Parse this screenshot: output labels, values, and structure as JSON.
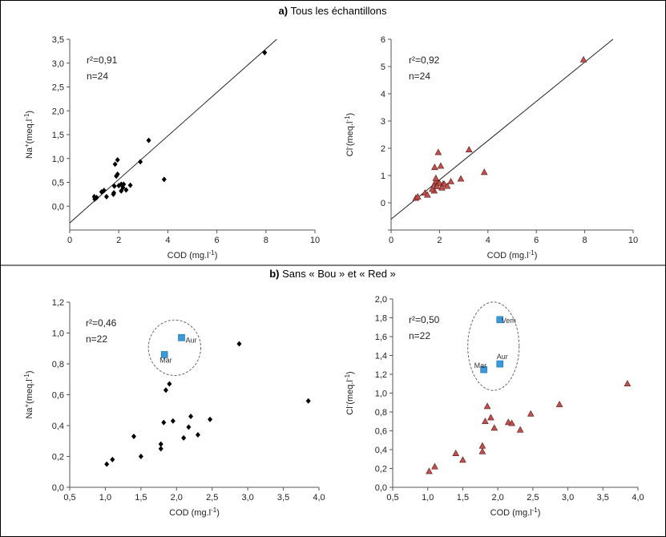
{
  "figure": {
    "section_a": {
      "letter": "a)",
      "title": "Tous les échantillons"
    },
    "section_b": {
      "letter": "b)",
      "title": "Sans « Bou » et « Red »"
    }
  },
  "chart_data": [
    {
      "type": "scatter",
      "xlabel": "COD (mg.l",
      "xlabel_sup": "-1",
      "xlabel_end": ")",
      "ylabel": "Na",
      "ylabel_sup1": "+",
      "ylabel_mid": "(meq.l",
      "ylabel_sup2": "-1",
      "ylabel_end": ")",
      "stats": {
        "r2_label": "r²=0,91",
        "n_label": "n=24"
      },
      "xlim": [
        0,
        10
      ],
      "ylim": [
        -0.5,
        3.5
      ],
      "xticks": [
        0,
        2,
        4,
        6,
        8,
        10
      ],
      "xtick_labels": [
        "0",
        "2",
        "4",
        "6",
        "8",
        "10"
      ],
      "yticks": [
        0.0,
        0.5,
        1.0,
        1.5,
        2.0,
        2.5,
        3.0,
        3.5
      ],
      "ytick_labels": [
        "0,0",
        "0,5",
        "1,0",
        "1,5",
        "2,0",
        "2,5",
        "3,0",
        "3,5"
      ],
      "marker": "diamond",
      "color": "#000000",
      "trendline": {
        "slope": 0.456,
        "intercept": -0.35
      },
      "series": [
        {
          "x": [
            1.02,
            1.1,
            1.4,
            1.5,
            1.78,
            1.8,
            1.82,
            1.85,
            1.9,
            1.95,
            2.0,
            2.1,
            2.17,
            2.2,
            2.3,
            2.47,
            2.1,
            1.0,
            1.3,
            1.95,
            2.88,
            3.22,
            3.85,
            7.95
          ],
          "y": [
            0.15,
            0.18,
            0.33,
            0.2,
            0.25,
            0.28,
            0.42,
            0.88,
            0.63,
            0.97,
            0.43,
            0.32,
            0.39,
            0.46,
            0.34,
            0.44,
            0.46,
            0.2,
            0.3,
            0.67,
            0.93,
            1.38,
            0.56,
            3.22
          ]
        }
      ]
    },
    {
      "type": "scatter",
      "xlabel": "COD (mg.l",
      "xlabel_sup": "-1",
      "xlabel_end": ")",
      "ylabel": "Cl",
      "ylabel_sup1": "-",
      "ylabel_mid": "(meq.l",
      "ylabel_sup2": "-1",
      "ylabel_end": ")",
      "stats": {
        "r2_label": "r²=0,92",
        "n_label": "n=24"
      },
      "xlim": [
        0,
        10
      ],
      "ylim": [
        -1,
        6
      ],
      "xticks": [
        0,
        2,
        4,
        6,
        8,
        10
      ],
      "xtick_labels": [
        "0",
        "2",
        "4",
        "6",
        "8",
        "10"
      ],
      "yticks": [
        -1,
        0,
        1,
        2,
        3,
        4,
        5,
        6
      ],
      "ytick_labels": [
        "",
        "0",
        "1",
        "2",
        "3",
        "4",
        "5",
        "6"
      ],
      "marker": "triangle",
      "color": "#c0504d",
      "trendline": {
        "slope": 0.72,
        "intercept": -0.6
      },
      "series": [
        {
          "x": [
            1.02,
            1.1,
            1.4,
            1.5,
            1.78,
            1.8,
            1.85,
            1.88,
            1.95,
            2.0,
            2.15,
            2.2,
            2.32,
            2.47,
            2.88,
            3.85,
            7.95,
            1.8,
            1.85,
            2.05,
            2.1,
            3.22,
            1.7,
            1.9
          ],
          "y": [
            0.17,
            0.22,
            0.36,
            0.29,
            0.44,
            0.7,
            0.78,
            0.62,
            1.85,
            0.72,
            0.69,
            0.68,
            0.61,
            0.78,
            0.88,
            1.12,
            5.25,
            1.3,
            0.9,
            1.35,
            0.55,
            1.95,
            0.5,
            0.6
          ]
        }
      ]
    },
    {
      "type": "scatter",
      "xlabel": "COD (mg.l",
      "xlabel_sup": "-1",
      "xlabel_end": ")",
      "ylabel": "Na",
      "ylabel_sup1": "+",
      "ylabel_mid": "(meq.l",
      "ylabel_sup2": "-1",
      "ylabel_end": ")",
      "stats": {
        "r2_label": "r²=0,46",
        "n_label": "n=22"
      },
      "xlim": [
        0.5,
        4.0
      ],
      "ylim": [
        0.0,
        1.2
      ],
      "xticks": [
        0.5,
        1.0,
        1.5,
        2.0,
        2.5,
        3.0,
        3.5,
        4.0
      ],
      "xtick_labels": [
        "0,5",
        "1,0",
        "1,5",
        "2,0",
        "2,5",
        "3,0",
        "3,5",
        "4,0"
      ],
      "yticks": [
        0.0,
        0.2,
        0.4,
        0.6,
        0.8,
        1.0,
        1.2
      ],
      "ytick_labels": [
        "0,0",
        "0,2",
        "0,4",
        "0,6",
        "0,8",
        "1,0",
        "1,2"
      ],
      "marker": "diamond",
      "color": "#000000",
      "series": [
        {
          "x": [
            1.02,
            1.1,
            1.4,
            1.5,
            1.78,
            1.78,
            1.82,
            1.85,
            1.9,
            1.95,
            2.1,
            2.17,
            2.2,
            2.3,
            2.47,
            2.88,
            3.85
          ],
          "y": [
            0.15,
            0.18,
            0.33,
            0.2,
            0.25,
            0.28,
            0.42,
            0.63,
            0.67,
            0.43,
            0.32,
            0.39,
            0.46,
            0.34,
            0.44,
            0.93,
            0.56
          ]
        }
      ],
      "highlighted": {
        "color": "#3a9ad9",
        "points": [
          {
            "label": "Aur",
            "x": 2.07,
            "y": 0.97
          },
          {
            "label": "Mar",
            "x": 1.83,
            "y": 0.86
          }
        ]
      }
    },
    {
      "type": "scatter",
      "xlabel": "COD (mg.l",
      "xlabel_sup": "-1",
      "xlabel_end": ")",
      "ylabel": "Cl",
      "ylabel_sup1": "-",
      "ylabel_mid": "(meq.l",
      "ylabel_sup2": "-1",
      "ylabel_end": ")",
      "stats": {
        "r2_label": "r²=0,50",
        "n_label": "n=22"
      },
      "xlim": [
        0.5,
        4.0
      ],
      "ylim": [
        0.0,
        2.0
      ],
      "xticks": [
        0.5,
        1.0,
        1.5,
        2.0,
        2.5,
        3.0,
        3.5,
        4.0
      ],
      "xtick_labels": [
        "0,5",
        "1,0",
        "1,5",
        "2,0",
        "2,5",
        "3,0",
        "3,5",
        "4,0"
      ],
      "yticks": [
        0.0,
        0.2,
        0.4,
        0.6,
        0.8,
        1.0,
        1.2,
        1.4,
        1.6,
        1.8,
        2.0
      ],
      "ytick_labels": [
        "0,0",
        "0,2",
        "0,4",
        "0,6",
        "0,8",
        "1,0",
        "1,2",
        "1,4",
        "1,6",
        "1,8",
        "2,0"
      ],
      "marker": "triangle",
      "color": "#c0504d",
      "series": [
        {
          "x": [
            1.02,
            1.1,
            1.4,
            1.5,
            1.78,
            1.78,
            1.82,
            1.85,
            1.9,
            1.95,
            2.15,
            2.2,
            2.32,
            2.47,
            2.88,
            3.85
          ],
          "y": [
            0.17,
            0.22,
            0.36,
            0.29,
            0.38,
            0.44,
            0.7,
            0.86,
            0.74,
            0.63,
            0.69,
            0.68,
            0.61,
            0.78,
            0.88,
            1.1
          ]
        }
      ],
      "highlighted": {
        "color": "#3a9ad9",
        "points": [
          {
            "label": "Vem",
            "x": 2.03,
            "y": 1.78
          },
          {
            "label": "Aur",
            "x": 2.03,
            "y": 1.31
          },
          {
            "label": "Mar",
            "x": 1.8,
            "y": 1.25
          }
        ]
      }
    }
  ]
}
